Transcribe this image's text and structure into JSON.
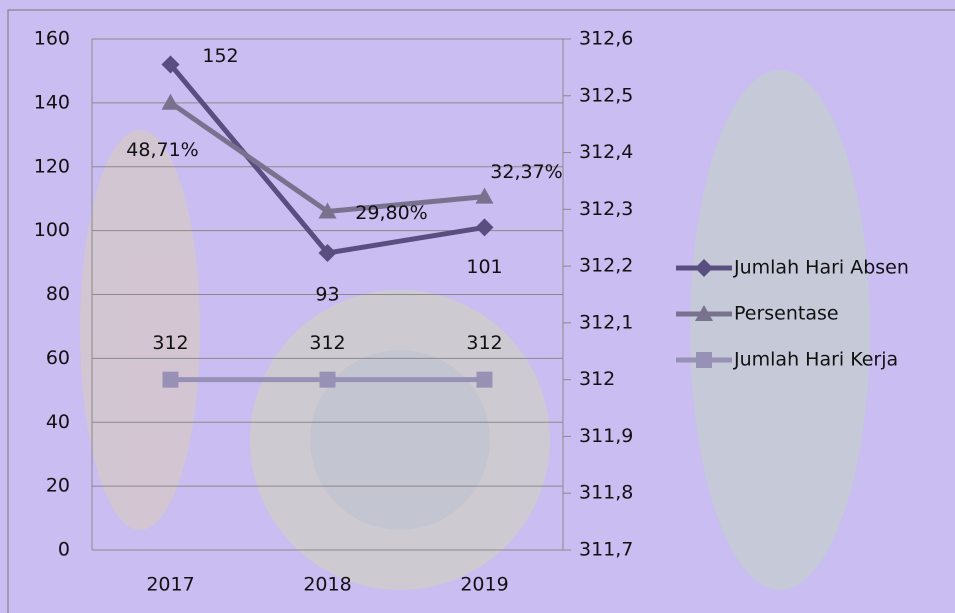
{
  "chart_data": {
    "type": "line",
    "categories": [
      "2017",
      "2018",
      "2019"
    ],
    "series": [
      {
        "name": "Jumlah Hari Absen",
        "color": "#5a4e80",
        "marker": "diamond",
        "values": [
          152,
          93,
          101
        ]
      },
      {
        "name": "Persentase",
        "color": "#78728f",
        "marker": "triangle",
        "axis": "y3",
        "values": [
          48.71,
          29.8,
          32.37
        ],
        "value_labels": [
          "48,71%",
          "29,80%",
          "32,37%"
        ]
      },
      {
        "name": "Jumlah Hari Kerja",
        "color": "#9891b6",
        "marker": "square",
        "axis": "y2",
        "values": [
          312,
          312,
          312
        ]
      }
    ],
    "ylim": [
      0,
      160
    ],
    "yticks": [
      0,
      20,
      40,
      60,
      80,
      100,
      120,
      140,
      160
    ],
    "y2lim": [
      311.7,
      312.6
    ],
    "y2ticks": [
      {
        "value": 311.7,
        "label": "311,7"
      },
      {
        "value": 311.8,
        "label": "311,8"
      },
      {
        "value": 311.9,
        "label": "311,9"
      },
      312,
      {
        "value": 312.1,
        "label": "312,1"
      },
      {
        "value": 312.2,
        "label": "312,2"
      },
      {
        "value": 312.3,
        "label": "312,3"
      },
      {
        "value": 312.4,
        "label": "312,4"
      },
      {
        "value": 312.5,
        "label": "312,5"
      },
      {
        "value": 312.6,
        "label": "312,6"
      }
    ],
    "y3lim": [
      -29.1,
      59.8
    ],
    "grid": true,
    "legend": "right"
  }
}
